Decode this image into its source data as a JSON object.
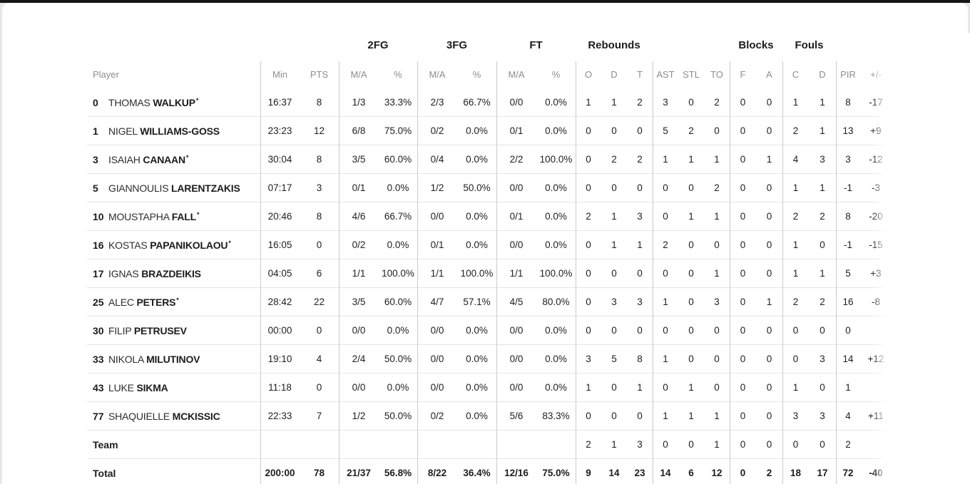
{
  "colors": {
    "top_strip": "#161616",
    "card_background": "#ffffff",
    "page_background": "#e7e7e7",
    "header_text": "#8d8d8d",
    "data_text": "#1c1c1c",
    "row_divider": "#e5e5e5",
    "column_divider": "#cbcbcb"
  },
  "table": {
    "groups": [
      "2FG",
      "3FG",
      "FT",
      "Rebounds",
      "Blocks",
      "Fouls"
    ],
    "columns": [
      "Player",
      "Min",
      "PTS",
      "M/A",
      "%",
      "M/A",
      "%",
      "M/A",
      "%",
      "O",
      "D",
      "T",
      "AST",
      "STL",
      "TO",
      "F",
      "A",
      "C",
      "D",
      "PIR",
      "+/-"
    ],
    "rows": [
      {
        "number": "0",
        "first": "THOMAS",
        "last": "WALKUP",
        "starter": true,
        "stats": [
          "16:37",
          "8",
          "1/3",
          "33.3%",
          "2/3",
          "66.7%",
          "0/0",
          "0.0%",
          "1",
          "1",
          "2",
          "3",
          "0",
          "2",
          "0",
          "0",
          "1",
          "1",
          "8",
          "-17"
        ]
      },
      {
        "number": "1",
        "first": "NIGEL",
        "last": "WILLIAMS-GOSS",
        "starter": false,
        "stats": [
          "23:23",
          "12",
          "6/8",
          "75.0%",
          "0/2",
          "0.0%",
          "0/1",
          "0.0%",
          "0",
          "0",
          "0",
          "5",
          "2",
          "0",
          "0",
          "0",
          "2",
          "1",
          "13",
          "+9"
        ]
      },
      {
        "number": "3",
        "first": "ISAIAH",
        "last": "CANAAN",
        "starter": true,
        "stats": [
          "30:04",
          "8",
          "3/5",
          "60.0%",
          "0/4",
          "0.0%",
          "2/2",
          "100.0%",
          "0",
          "2",
          "2",
          "1",
          "1",
          "1",
          "0",
          "1",
          "4",
          "3",
          "3",
          "-12"
        ]
      },
      {
        "number": "5",
        "first": "GIANNOULIS",
        "last": "LARENTZAKIS",
        "starter": false,
        "stats": [
          "07:17",
          "3",
          "0/1",
          "0.0%",
          "1/2",
          "50.0%",
          "0/0",
          "0.0%",
          "0",
          "0",
          "0",
          "0",
          "0",
          "2",
          "0",
          "0",
          "1",
          "1",
          "-1",
          "-3"
        ]
      },
      {
        "number": "10",
        "first": "MOUSTAPHA",
        "last": "FALL",
        "starter": true,
        "stats": [
          "20:46",
          "8",
          "4/6",
          "66.7%",
          "0/0",
          "0.0%",
          "0/1",
          "0.0%",
          "2",
          "1",
          "3",
          "0",
          "1",
          "1",
          "0",
          "0",
          "2",
          "2",
          "8",
          "-20"
        ]
      },
      {
        "number": "16",
        "first": "KOSTAS",
        "last": "PAPANIKOLAOU",
        "starter": true,
        "stats": [
          "16:05",
          "0",
          "0/2",
          "0.0%",
          "0/1",
          "0.0%",
          "0/0",
          "0.0%",
          "0",
          "1",
          "1",
          "2",
          "0",
          "0",
          "0",
          "0",
          "1",
          "0",
          "-1",
          "-15"
        ]
      },
      {
        "number": "17",
        "first": "IGNAS",
        "last": "BRAZDEIKIS",
        "starter": false,
        "stats": [
          "04:05",
          "6",
          "1/1",
          "100.0%",
          "1/1",
          "100.0%",
          "1/1",
          "100.0%",
          "0",
          "0",
          "0",
          "0",
          "0",
          "1",
          "0",
          "0",
          "1",
          "1",
          "5",
          "+3"
        ]
      },
      {
        "number": "25",
        "first": "ALEC",
        "last": "PETERS",
        "starter": true,
        "stats": [
          "28:42",
          "22",
          "3/5",
          "60.0%",
          "4/7",
          "57.1%",
          "4/5",
          "80.0%",
          "0",
          "3",
          "3",
          "1",
          "0",
          "3",
          "0",
          "1",
          "2",
          "2",
          "16",
          "-8"
        ]
      },
      {
        "number": "30",
        "first": "FILIP",
        "last": "PETRUSEV",
        "starter": false,
        "stats": [
          "00:00",
          "0",
          "0/0",
          "0.0%",
          "0/0",
          "0.0%",
          "0/0",
          "0.0%",
          "0",
          "0",
          "0",
          "0",
          "0",
          "0",
          "0",
          "0",
          "0",
          "0",
          "0",
          ""
        ]
      },
      {
        "number": "33",
        "first": "NIKOLA",
        "last": "MILUTINOV",
        "starter": false,
        "stats": [
          "19:10",
          "4",
          "2/4",
          "50.0%",
          "0/0",
          "0.0%",
          "0/0",
          "0.0%",
          "3",
          "5",
          "8",
          "1",
          "0",
          "0",
          "0",
          "0",
          "0",
          "3",
          "14",
          "+12"
        ]
      },
      {
        "number": "43",
        "first": "LUKE",
        "last": "SIKMA",
        "starter": false,
        "stats": [
          "11:18",
          "0",
          "0/0",
          "0.0%",
          "0/0",
          "0.0%",
          "0/0",
          "0.0%",
          "1",
          "0",
          "1",
          "0",
          "1",
          "0",
          "0",
          "0",
          "1",
          "0",
          "1",
          ""
        ]
      },
      {
        "number": "77",
        "first": "SHAQUIELLE",
        "last": "MCKISSIC",
        "starter": false,
        "stats": [
          "22:33",
          "7",
          "1/2",
          "50.0%",
          "0/2",
          "0.0%",
          "5/6",
          "83.3%",
          "0",
          "0",
          "0",
          "1",
          "1",
          "1",
          "0",
          "0",
          "3",
          "3",
          "4",
          "+11"
        ]
      },
      {
        "label": "Team",
        "stats": [
          "",
          "",
          "",
          "",
          "",
          "",
          "",
          "",
          "2",
          "1",
          "3",
          "0",
          "0",
          "1",
          "0",
          "0",
          "0",
          "0",
          "2",
          ""
        ]
      },
      {
        "label": "Total",
        "total": true,
        "stats": [
          "200:00",
          "78",
          "21/37",
          "56.8%",
          "8/22",
          "36.4%",
          "12/16",
          "75.0%",
          "9",
          "14",
          "23",
          "14",
          "6",
          "12",
          "0",
          "2",
          "18",
          "17",
          "72",
          "-40"
        ]
      }
    ]
  }
}
